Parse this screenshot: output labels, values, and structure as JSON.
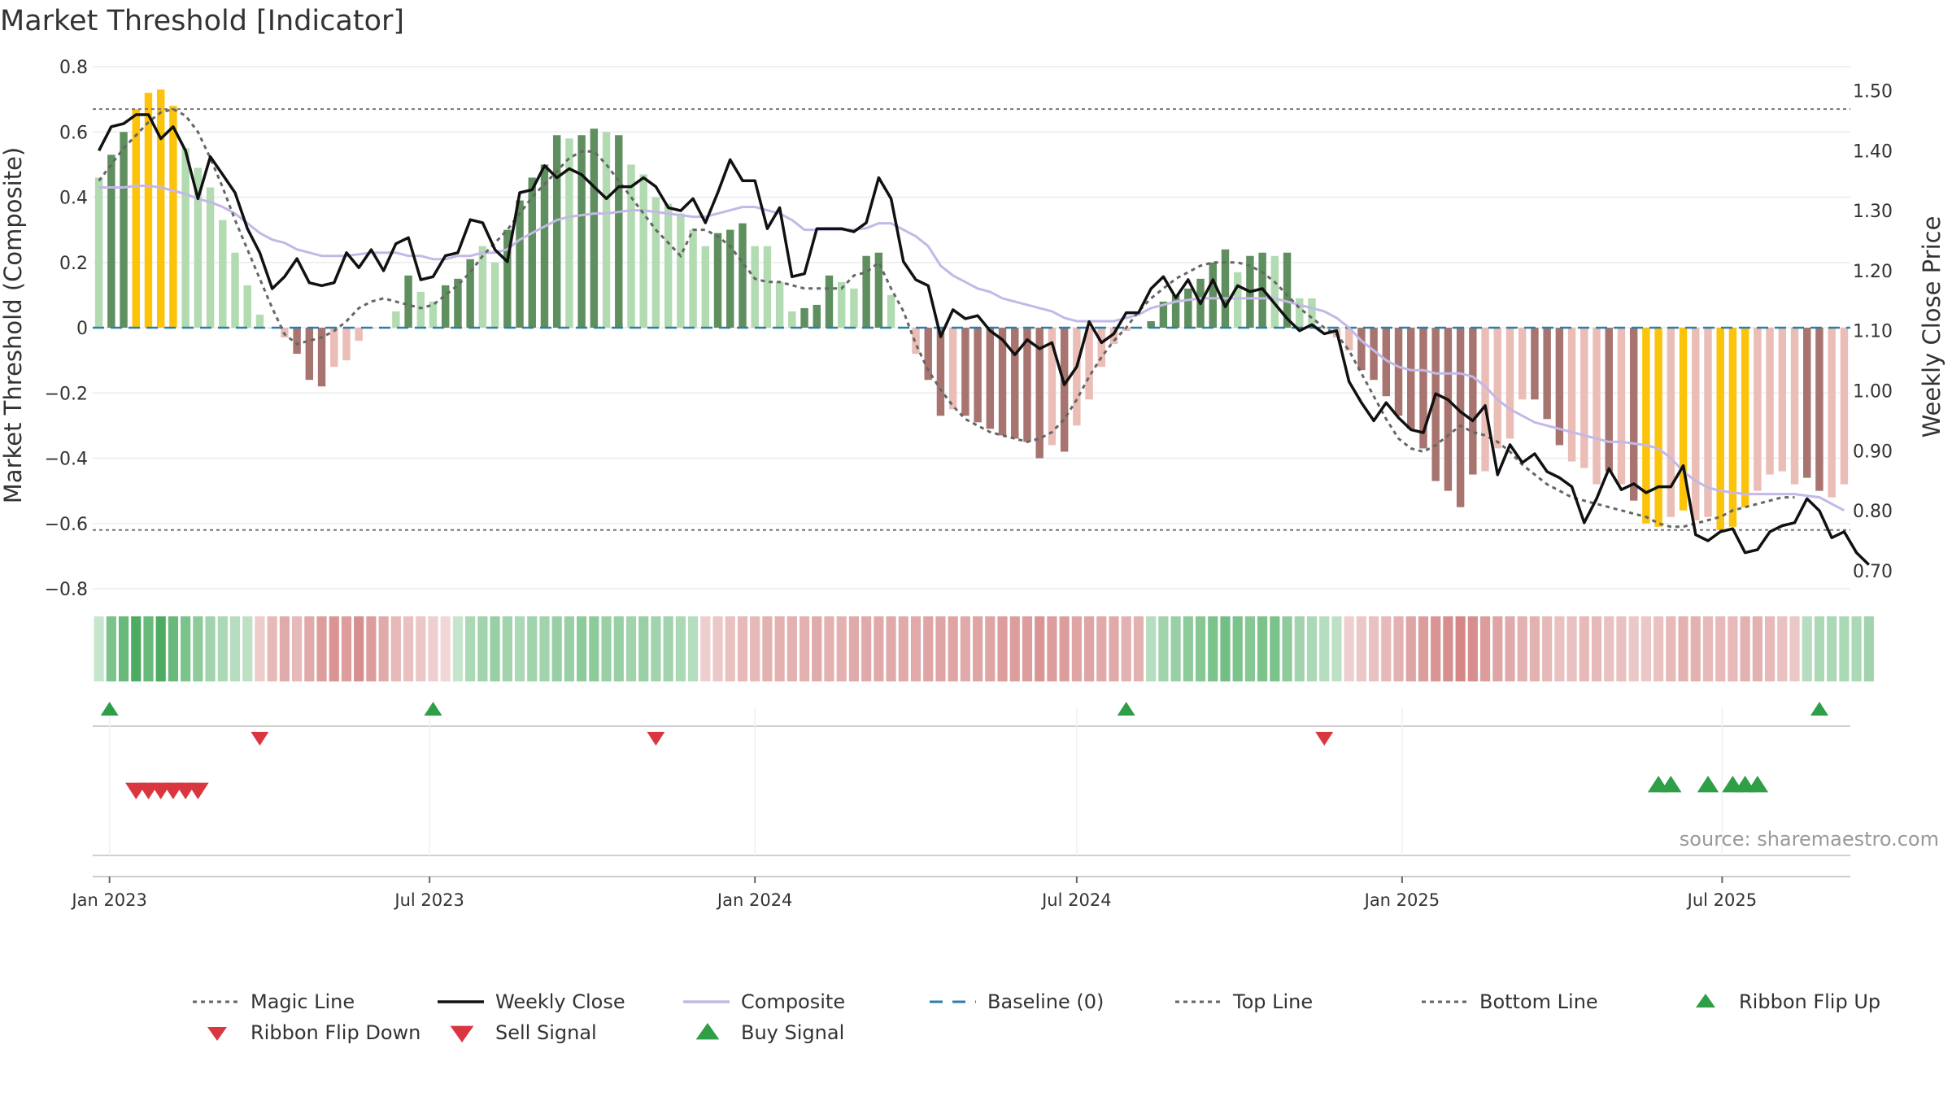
{
  "title": "Market Threshold [Indicator]",
  "source": "source: sharemaestro.com",
  "colors": {
    "strong_green": "#5f8f5f",
    "light_green": "#b2dbb2",
    "strong_red": "#a87470",
    "light_red": "#ebbdb7",
    "extreme": "#fcc30b",
    "weekly_close": "#111111",
    "composite": "#c3b8e6",
    "magic_line": "#666666",
    "baseline": "#2c7fa8",
    "buy": "#2e9e47",
    "sell": "#d93640"
  },
  "legend": [
    {
      "label": "Magic Line",
      "key": "magic_line",
      "kind": "dotted"
    },
    {
      "label": "Weekly Close",
      "key": "weekly_close",
      "kind": "solid"
    },
    {
      "label": "Composite",
      "key": "composite",
      "kind": "solid"
    },
    {
      "label": "Baseline (0)",
      "key": "baseline",
      "kind": "dashed"
    },
    {
      "label": "Top Line",
      "key": "magic_line",
      "kind": "dotted"
    },
    {
      "label": "Bottom Line",
      "key": "magic_line",
      "kind": "dotted"
    },
    {
      "label": "Ribbon Flip Up",
      "key": "buy",
      "kind": "tri-up"
    },
    {
      "label": "Ribbon Flip Down",
      "key": "sell",
      "kind": "tri-down"
    },
    {
      "label": "Sell Signal",
      "key": "sell",
      "kind": "tri-down-big"
    },
    {
      "label": "Buy Signal",
      "key": "buy",
      "kind": "tri-up-big"
    }
  ],
  "chart_data": {
    "type": "bar",
    "x_axis": {
      "start_date": "2022-12-26",
      "end_date": "2025-09-15",
      "ticks": [
        {
          "label": "Jan 2023",
          "date": "2023-01-01"
        },
        {
          "label": "Jul 2023",
          "date": "2023-07-01"
        },
        {
          "label": "Jan 2024",
          "date": "2024-01-01"
        },
        {
          "label": "Jul 2024",
          "date": "2024-07-01"
        },
        {
          "label": "Jan 2025",
          "date": "2025-01-01"
        },
        {
          "label": "Jul 2025",
          "date": "2025-07-01"
        }
      ]
    },
    "y_left": {
      "label": "Market Threshold (Composite)",
      "range": [
        -0.8,
        0.8
      ],
      "ticks": [
        {
          "v": 0.8,
          "label": "0.8"
        },
        {
          "v": 0.6,
          "label": "0.6"
        },
        {
          "v": 0.4,
          "label": "0.4"
        },
        {
          "v": 0.2,
          "label": "0.2"
        },
        {
          "v": 0,
          "label": "0"
        },
        {
          "v": -0.2,
          "label": "−0.2"
        },
        {
          "v": -0.4,
          "label": "−0.4"
        },
        {
          "v": -0.6,
          "label": "−0.6"
        },
        {
          "v": -0.8,
          "label": "−0.8"
        }
      ]
    },
    "y_right": {
      "label": "Weekly Close Price",
      "range": [
        0.67,
        1.54
      ],
      "ticks": [
        {
          "v": 1.5,
          "label": "1.50"
        },
        {
          "v": 1.4,
          "label": "1.40"
        },
        {
          "v": 1.3,
          "label": "1.30"
        },
        {
          "v": 1.2,
          "label": "1.20"
        },
        {
          "v": 1.1,
          "label": "1.10"
        },
        {
          "v": 1.0,
          "label": "1.00"
        },
        {
          "v": 0.9,
          "label": "0.90"
        },
        {
          "v": 0.8,
          "label": "0.80"
        },
        {
          "v": 0.7,
          "label": "0.70"
        }
      ]
    },
    "top_line": 0.67,
    "bottom_line": -0.62,
    "bars": [
      0.46,
      0.53,
      0.6,
      0.67,
      0.72,
      0.73,
      0.68,
      0.55,
      0.49,
      0.43,
      0.33,
      0.23,
      0.13,
      0.04,
      0.0,
      -0.03,
      -0.08,
      -0.16,
      -0.18,
      -0.12,
      -0.1,
      -0.04,
      0.0,
      0.0,
      0.05,
      0.16,
      0.11,
      0.08,
      0.13,
      0.15,
      0.21,
      0.25,
      0.2,
      0.3,
      0.39,
      0.46,
      0.5,
      0.59,
      0.58,
      0.59,
      0.61,
      0.6,
      0.59,
      0.5,
      0.47,
      0.4,
      0.38,
      0.35,
      0.3,
      0.25,
      0.29,
      0.3,
      0.32,
      0.25,
      0.25,
      0.14,
      0.05,
      0.06,
      0.07,
      0.16,
      0.14,
      0.12,
      0.22,
      0.23,
      0.1,
      0.0,
      -0.08,
      -0.16,
      -0.27,
      -0.25,
      -0.27,
      -0.29,
      -0.31,
      -0.33,
      -0.34,
      -0.35,
      -0.4,
      -0.36,
      -0.38,
      -0.3,
      -0.22,
      -0.12,
      -0.05,
      -0.01,
      0.0,
      0.02,
      0.08,
      0.1,
      0.12,
      0.15,
      0.2,
      0.24,
      0.17,
      0.22,
      0.23,
      0.22,
      0.23,
      0.09,
      0.09,
      0.0,
      -0.03,
      -0.07,
      -0.13,
      -0.16,
      -0.21,
      -0.27,
      -0.31,
      -0.37,
      -0.47,
      -0.5,
      -0.55,
      -0.45,
      -0.44,
      -0.37,
      -0.34,
      -0.22,
      -0.22,
      -0.28,
      -0.36,
      -0.41,
      -0.43,
      -0.48,
      -0.44,
      -0.48,
      -0.53,
      -0.6,
      -0.61,
      -0.58,
      -0.56,
      -0.59,
      -0.58,
      -0.62,
      -0.61,
      -0.55,
      -0.5,
      -0.45,
      -0.44,
      -0.48,
      -0.46,
      -0.5,
      -0.52,
      -0.48
    ],
    "bar_colors": [
      "light_green",
      "strong_green",
      "strong_green",
      "extreme",
      "extreme",
      "extreme",
      "extreme",
      "light_green",
      "light_green",
      "light_green",
      "light_green",
      "light_green",
      "light_green",
      "light_green",
      "light_green",
      "light_red",
      "strong_red",
      "strong_red",
      "strong_red",
      "light_red",
      "light_red",
      "light_red",
      "light_red",
      "light_red",
      "light_green",
      "strong_green",
      "light_green",
      "light_green",
      "strong_green",
      "strong_green",
      "strong_green",
      "light_green",
      "light_green",
      "strong_green",
      "strong_green",
      "strong_green",
      "strong_green",
      "strong_green",
      "light_green",
      "strong_green",
      "strong_green",
      "light_green",
      "strong_green",
      "light_green",
      "light_green",
      "light_green",
      "light_green",
      "light_green",
      "light_green",
      "light_green",
      "strong_green",
      "strong_green",
      "strong_green",
      "light_green",
      "light_green",
      "light_green",
      "light_green",
      "strong_green",
      "strong_green",
      "strong_green",
      "light_green",
      "light_green",
      "strong_green",
      "strong_green",
      "light_green",
      "light_green",
      "light_red",
      "strong_red",
      "strong_red",
      "light_red",
      "strong_red",
      "strong_red",
      "strong_red",
      "strong_red",
      "strong_red",
      "strong_red",
      "strong_red",
      "light_red",
      "strong_red",
      "light_red",
      "light_red",
      "light_red",
      "light_red",
      "light_red",
      "light_green",
      "strong_green",
      "strong_green",
      "strong_green",
      "strong_green",
      "strong_green",
      "strong_green",
      "strong_green",
      "light_green",
      "strong_green",
      "strong_green",
      "light_green",
      "strong_green",
      "light_green",
      "light_green",
      "light_green",
      "light_red",
      "light_red",
      "strong_red",
      "strong_red",
      "strong_red",
      "strong_red",
      "strong_red",
      "strong_red",
      "strong_red",
      "strong_red",
      "strong_red",
      "strong_red",
      "light_red",
      "light_red",
      "light_red",
      "light_red",
      "strong_red",
      "strong_red",
      "strong_red",
      "light_red",
      "light_red",
      "light_red",
      "strong_red",
      "light_red",
      "strong_red",
      "extreme",
      "extreme",
      "light_red",
      "extreme",
      "light_red",
      "light_red",
      "extreme",
      "extreme",
      "extreme",
      "light_red",
      "light_red",
      "light_red",
      "light_red",
      "strong_red",
      "strong_red",
      "light_red",
      "light_red",
      "strong_red"
    ],
    "weekly_close": [
      1.4,
      1.44,
      1.445,
      1.46,
      1.46,
      1.42,
      1.44,
      1.4,
      1.32,
      1.39,
      1.36,
      1.33,
      1.27,
      1.23,
      1.17,
      1.19,
      1.22,
      1.18,
      1.175,
      1.18,
      1.23,
      1.205,
      1.235,
      1.2,
      1.245,
      1.255,
      1.185,
      1.19,
      1.225,
      1.23,
      1.285,
      1.28,
      1.235,
      1.215,
      1.33,
      1.335,
      1.375,
      1.355,
      1.37,
      1.36,
      1.34,
      1.32,
      1.34,
      1.34,
      1.355,
      1.34,
      1.305,
      1.3,
      1.32,
      1.28,
      1.33,
      1.385,
      1.35,
      1.35,
      1.27,
      1.305,
      1.19,
      1.195,
      1.27,
      1.27,
      1.27,
      1.265,
      1.28,
      1.355,
      1.32,
      1.215,
      1.185,
      1.175,
      1.09,
      1.135,
      1.12,
      1.125,
      1.1,
      1.085,
      1.06,
      1.085,
      1.07,
      1.08,
      1.01,
      1.04,
      1.115,
      1.08,
      1.095,
      1.13,
      1.13,
      1.17,
      1.19,
      1.155,
      1.185,
      1.145,
      1.185,
      1.14,
      1.175,
      1.165,
      1.17,
      1.145,
      1.12,
      1.1,
      1.11,
      1.095,
      1.1,
      1.015,
      0.98,
      0.95,
      0.98,
      0.955,
      0.935,
      0.93,
      0.995,
      0.985,
      0.965,
      0.95,
      0.975,
      0.86,
      0.91,
      0.88,
      0.895,
      0.865,
      0.855,
      0.84,
      0.78,
      0.82,
      0.87,
      0.835,
      0.845,
      0.83,
      0.84,
      0.84,
      0.875,
      0.76,
      0.75,
      0.765,
      0.77,
      0.73,
      0.735,
      0.765,
      0.775,
      0.78,
      0.82,
      0.8,
      0.755,
      0.765,
      0.73,
      0.71
    ],
    "composite": [
      0.43,
      0.43,
      0.43,
      0.435,
      0.435,
      0.43,
      0.42,
      0.41,
      0.395,
      0.385,
      0.37,
      0.35,
      0.32,
      0.29,
      0.27,
      0.26,
      0.24,
      0.23,
      0.22,
      0.22,
      0.22,
      0.225,
      0.23,
      0.23,
      0.23,
      0.22,
      0.22,
      0.21,
      0.21,
      0.22,
      0.22,
      0.23,
      0.23,
      0.24,
      0.27,
      0.29,
      0.31,
      0.33,
      0.34,
      0.345,
      0.35,
      0.35,
      0.355,
      0.36,
      0.36,
      0.355,
      0.35,
      0.345,
      0.34,
      0.34,
      0.35,
      0.36,
      0.37,
      0.37,
      0.36,
      0.35,
      0.33,
      0.3,
      0.3,
      0.3,
      0.3,
      0.3,
      0.305,
      0.32,
      0.32,
      0.3,
      0.28,
      0.25,
      0.19,
      0.16,
      0.14,
      0.12,
      0.11,
      0.09,
      0.08,
      0.07,
      0.06,
      0.05,
      0.03,
      0.02,
      0.02,
      0.02,
      0.02,
      0.03,
      0.04,
      0.06,
      0.07,
      0.08,
      0.085,
      0.09,
      0.09,
      0.09,
      0.09,
      0.09,
      0.09,
      0.09,
      0.08,
      0.07,
      0.06,
      0.05,
      0.03,
      0.0,
      -0.04,
      -0.07,
      -0.1,
      -0.12,
      -0.13,
      -0.13,
      -0.14,
      -0.14,
      -0.14,
      -0.15,
      -0.18,
      -0.22,
      -0.25,
      -0.27,
      -0.29,
      -0.3,
      -0.31,
      -0.32,
      -0.33,
      -0.34,
      -0.35,
      -0.35,
      -0.355,
      -0.36,
      -0.37,
      -0.4,
      -0.44,
      -0.47,
      -0.49,
      -0.5,
      -0.505,
      -0.51,
      -0.51,
      -0.51,
      -0.51,
      -0.51,
      -0.515,
      -0.52,
      -0.54,
      -0.56
    ],
    "magic_line": [
      0.45,
      0.5,
      0.55,
      0.59,
      0.63,
      0.66,
      0.67,
      0.65,
      0.6,
      0.52,
      0.43,
      0.33,
      0.24,
      0.15,
      0.06,
      -0.02,
      -0.05,
      -0.04,
      -0.03,
      -0.01,
      0.02,
      0.06,
      0.08,
      0.09,
      0.08,
      0.07,
      0.06,
      0.07,
      0.1,
      0.13,
      0.17,
      0.22,
      0.26,
      0.3,
      0.35,
      0.4,
      0.44,
      0.48,
      0.52,
      0.54,
      0.54,
      0.5,
      0.45,
      0.4,
      0.35,
      0.3,
      0.26,
      0.22,
      0.3,
      0.3,
      0.28,
      0.25,
      0.2,
      0.15,
      0.14,
      0.14,
      0.13,
      0.12,
      0.12,
      0.12,
      0.12,
      0.16,
      0.17,
      0.2,
      0.12,
      0.05,
      -0.05,
      -0.13,
      -0.19,
      -0.24,
      -0.28,
      -0.3,
      -0.32,
      -0.33,
      -0.34,
      -0.35,
      -0.34,
      -0.32,
      -0.28,
      -0.22,
      -0.15,
      -0.09,
      -0.04,
      0.0,
      0.05,
      0.09,
      0.12,
      0.15,
      0.17,
      0.19,
      0.2,
      0.2,
      0.2,
      0.19,
      0.17,
      0.14,
      0.1,
      0.06,
      0.03,
      0.0,
      -0.02,
      -0.07,
      -0.14,
      -0.21,
      -0.28,
      -0.34,
      -0.37,
      -0.38,
      -0.36,
      -0.33,
      -0.3,
      -0.32,
      -0.33,
      -0.35,
      -0.38,
      -0.42,
      -0.45,
      -0.48,
      -0.5,
      -0.52,
      -0.53,
      -0.54,
      -0.55,
      -0.56,
      -0.57,
      -0.58,
      -0.6,
      -0.61,
      -0.61,
      -0.6,
      -0.59,
      -0.58,
      -0.56,
      -0.55,
      -0.54,
      -0.53,
      -0.52,
      -0.52
    ],
    "ribbon": [
      0.05,
      0.45,
      0.55,
      0.7,
      0.55,
      0.7,
      0.55,
      0.45,
      0.35,
      0.25,
      0.2,
      0.15,
      0.1,
      -0.12,
      -0.25,
      -0.35,
      -0.25,
      -0.35,
      -0.45,
      -0.5,
      -0.45,
      -0.55,
      -0.45,
      -0.35,
      -0.25,
      -0.2,
      -0.15,
      -0.1,
      -0.05,
      0.05,
      0.2,
      0.25,
      0.3,
      0.25,
      0.2,
      0.25,
      0.25,
      0.3,
      0.3,
      0.35,
      0.35,
      0.3,
      0.3,
      0.25,
      0.3,
      0.25,
      0.25,
      0.2,
      0.15,
      -0.1,
      -0.15,
      -0.2,
      -0.25,
      -0.25,
      -0.3,
      -0.3,
      -0.3,
      -0.3,
      -0.35,
      -0.3,
      -0.3,
      -0.35,
      -0.35,
      -0.35,
      -0.35,
      -0.35,
      -0.35,
      -0.4,
      -0.4,
      -0.4,
      -0.35,
      -0.4,
      -0.4,
      -0.45,
      -0.45,
      -0.45,
      -0.5,
      -0.45,
      -0.45,
      -0.4,
      -0.4,
      -0.35,
      -0.35,
      -0.3,
      -0.3,
      0.15,
      0.25,
      0.3,
      0.35,
      0.4,
      0.45,
      0.5,
      0.45,
      0.4,
      0.45,
      0.45,
      0.35,
      0.25,
      0.2,
      0.15,
      0.1,
      -0.1,
      -0.15,
      -0.2,
      -0.25,
      -0.3,
      -0.4,
      -0.45,
      -0.5,
      -0.55,
      -0.6,
      -0.55,
      -0.45,
      -0.4,
      -0.35,
      -0.3,
      -0.3,
      -0.25,
      -0.2,
      -0.2,
      -0.25,
      -0.25,
      -0.2,
      -0.2,
      -0.15,
      -0.15,
      -0.2,
      -0.25,
      -0.3,
      -0.3,
      -0.25,
      -0.25,
      -0.25,
      -0.3,
      -0.3,
      -0.25,
      -0.2,
      -0.15,
      0.15,
      0.2,
      0.2,
      0.2,
      0.2,
      0.25
    ],
    "ribbon_flip_up_dates": [
      "2023-01-01",
      "2023-07-03",
      "2024-07-29",
      "2025-08-25"
    ],
    "ribbon_flip_down_dates": [
      "2023-03-27",
      "2023-11-06",
      "2024-11-18"
    ],
    "sell_signal_dates": [
      "2023-01-16",
      "2023-01-23",
      "2023-01-30",
      "2023-02-06",
      "2023-02-13",
      "2023-02-20"
    ],
    "buy_signal_dates": [
      "2025-05-26",
      "2025-06-02",
      "2025-06-23",
      "2025-07-07",
      "2025-07-14",
      "2025-07-21"
    ]
  }
}
